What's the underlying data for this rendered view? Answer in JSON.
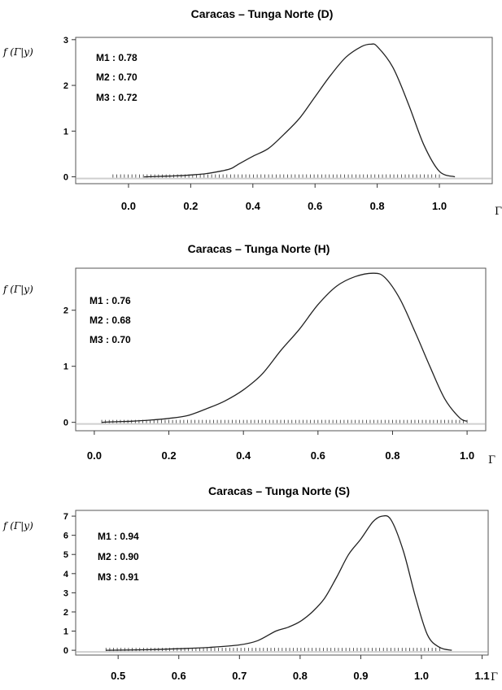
{
  "chart_data": [
    {
      "type": "line",
      "title": "Caracas – Tunga Norte (D)",
      "ylabel": "f (Γ|y)",
      "xlabel": "Γ",
      "xlim": [
        -0.17,
        1.17
      ],
      "ylim": [
        -0.15,
        3.05
      ],
      "xticks": [
        0.0,
        0.2,
        0.4,
        0.6,
        0.8,
        1.0
      ],
      "xtick_labels": [
        "0.0",
        "0.2",
        "0.4",
        "0.6",
        "0.8",
        "1.0"
      ],
      "yticks": [
        0,
        1,
        2,
        3
      ],
      "ytick_labels": [
        "0",
        "1",
        "2",
        "3"
      ],
      "annotations": [
        "M1 : 0.78",
        "M2 : 0.70",
        "M3 : 0.72"
      ],
      "rug_range": [
        -0.05,
        1.0
      ],
      "series": [
        {
          "x": [
            0.05,
            0.1,
            0.15,
            0.2,
            0.25,
            0.3,
            0.33,
            0.35,
            0.4,
            0.45,
            0.5,
            0.55,
            0.6,
            0.65,
            0.7,
            0.75,
            0.78,
            0.8,
            0.85,
            0.9,
            0.95,
            1.0,
            1.05
          ],
          "y": [
            0.0,
            0.01,
            0.02,
            0.04,
            0.07,
            0.13,
            0.18,
            0.26,
            0.45,
            0.62,
            0.93,
            1.28,
            1.75,
            2.22,
            2.62,
            2.85,
            2.9,
            2.85,
            2.4,
            1.6,
            0.7,
            0.12,
            0.0
          ]
        }
      ]
    },
    {
      "type": "line",
      "title": "Caracas – Tunga Norte (H)",
      "ylabel": "f (Γ|y)",
      "xlabel": "Γ",
      "xlim": [
        -0.05,
        1.05
      ],
      "ylim": [
        -0.15,
        2.75
      ],
      "xticks": [
        0.0,
        0.2,
        0.4,
        0.6,
        0.8,
        1.0
      ],
      "xtick_labels": [
        "0.0",
        "0.2",
        "0.4",
        "0.6",
        "0.8",
        "1.0"
      ],
      "yticks": [
        0,
        1,
        2
      ],
      "ytick_labels": [
        "0",
        "1",
        "2"
      ],
      "annotations": [
        "M1 : 0.76",
        "M2 : 0.68",
        "M3 : 0.70"
      ],
      "rug_range": [
        0.02,
        1.0
      ],
      "series": [
        {
          "x": [
            0.02,
            0.05,
            0.1,
            0.15,
            0.2,
            0.25,
            0.3,
            0.35,
            0.4,
            0.45,
            0.5,
            0.55,
            0.6,
            0.65,
            0.7,
            0.75,
            0.78,
            0.82,
            0.86,
            0.9,
            0.94,
            0.98,
            1.0
          ],
          "y": [
            0.0,
            0.01,
            0.02,
            0.04,
            0.07,
            0.12,
            0.24,
            0.38,
            0.58,
            0.86,
            1.28,
            1.66,
            2.1,
            2.43,
            2.6,
            2.66,
            2.58,
            2.2,
            1.62,
            1.0,
            0.42,
            0.08,
            0.02
          ]
        }
      ]
    },
    {
      "type": "line",
      "title": "Caracas – Tunga Norte (S)",
      "ylabel": "f (Γ|y)",
      "xlabel": "Γ",
      "xlim": [
        0.43,
        1.11
      ],
      "ylim": [
        -0.25,
        7.3
      ],
      "xticks": [
        0.5,
        0.6,
        0.7,
        0.8,
        0.9,
        1.0,
        1.1
      ],
      "xtick_labels": [
        "0.5",
        "0.6",
        "0.7",
        "0.8",
        "0.9",
        "1.0",
        "1.1"
      ],
      "yticks": [
        0,
        1,
        2,
        3,
        4,
        5,
        6,
        7
      ],
      "ytick_labels": [
        "0",
        "1",
        "2",
        "3",
        "4",
        "5",
        "6",
        "7"
      ],
      "annotations": [
        "M1 : 0.94",
        "M2 : 0.90",
        "M3 : 0.91"
      ],
      "rug_range": [
        0.48,
        1.03
      ],
      "series": [
        {
          "x": [
            0.48,
            0.55,
            0.6,
            0.65,
            0.7,
            0.73,
            0.76,
            0.78,
            0.8,
            0.82,
            0.84,
            0.86,
            0.88,
            0.9,
            0.92,
            0.935,
            0.95,
            0.97,
            0.99,
            1.01,
            1.03,
            1.05
          ],
          "y": [
            0.0,
            0.03,
            0.08,
            0.15,
            0.28,
            0.5,
            1.0,
            1.2,
            1.5,
            2.0,
            2.7,
            3.8,
            5.0,
            5.8,
            6.7,
            7.0,
            6.8,
            5.2,
            2.8,
            0.8,
            0.15,
            0.0
          ]
        }
      ]
    }
  ]
}
